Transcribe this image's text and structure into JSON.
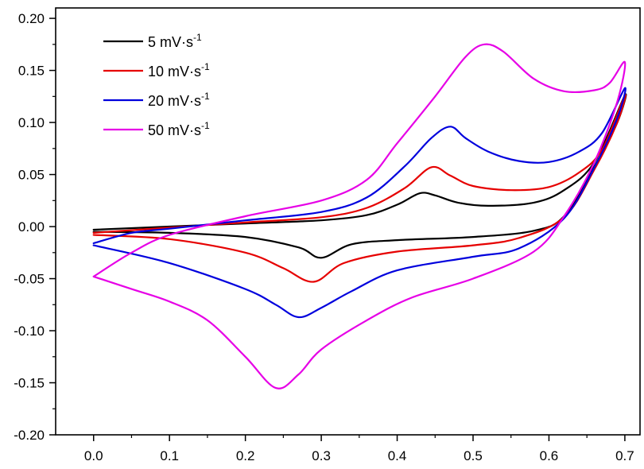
{
  "chart_data": {
    "type": "line",
    "title": "",
    "xlabel": "",
    "ylabel": "",
    "xlim": [
      -0.05,
      0.72
    ],
    "ylim": [
      -0.2,
      0.21
    ],
    "grid": false,
    "legend_position": "top-left",
    "x_ticks": [
      "0.0",
      "0.1",
      "0.2",
      "0.3",
      "0.4",
      "0.5",
      "0.6",
      "0.7"
    ],
    "x_tick_values": [
      0.0,
      0.1,
      0.2,
      0.3,
      0.4,
      0.5,
      0.6,
      0.7
    ],
    "y_ticks": [
      "0.20",
      "0.15",
      "0.10",
      "0.05",
      "0.00",
      "-0.05",
      "-0.10",
      "-0.15",
      "-0.20"
    ],
    "y_tick_values": [
      0.2,
      0.15,
      0.1,
      0.05,
      0.0,
      -0.05,
      -0.1,
      -0.15,
      -0.2
    ],
    "series": [
      {
        "name": "5 mV·s",
        "superscript": "-1",
        "color": "#000000",
        "points": [
          [
            0.0,
            -0.003
          ],
          [
            0.1,
            0.0
          ],
          [
            0.2,
            0.003
          ],
          [
            0.3,
            0.006
          ],
          [
            0.36,
            0.011
          ],
          [
            0.4,
            0.021
          ],
          [
            0.43,
            0.032
          ],
          [
            0.45,
            0.03
          ],
          [
            0.48,
            0.023
          ],
          [
            0.52,
            0.02
          ],
          [
            0.58,
            0.023
          ],
          [
            0.62,
            0.035
          ],
          [
            0.66,
            0.062
          ],
          [
            0.7,
            0.126
          ],
          [
            0.69,
            0.1
          ],
          [
            0.66,
            0.058
          ],
          [
            0.62,
            0.01
          ],
          [
            0.58,
            -0.004
          ],
          [
            0.5,
            -0.01
          ],
          [
            0.4,
            -0.013
          ],
          [
            0.34,
            -0.017
          ],
          [
            0.3,
            -0.03
          ],
          [
            0.27,
            -0.02
          ],
          [
            0.2,
            -0.01
          ],
          [
            0.1,
            -0.006
          ],
          [
            0.0,
            -0.005
          ]
        ]
      },
      {
        "name": "10 mV·s",
        "superscript": "-1",
        "color": "#e60000",
        "points": [
          [
            0.0,
            -0.006
          ],
          [
            0.1,
            -0.001
          ],
          [
            0.2,
            0.004
          ],
          [
            0.3,
            0.009
          ],
          [
            0.36,
            0.018
          ],
          [
            0.41,
            0.037
          ],
          [
            0.445,
            0.057
          ],
          [
            0.47,
            0.049
          ],
          [
            0.5,
            0.039
          ],
          [
            0.55,
            0.035
          ],
          [
            0.6,
            0.038
          ],
          [
            0.64,
            0.052
          ],
          [
            0.67,
            0.074
          ],
          [
            0.7,
            0.126
          ],
          [
            0.69,
            0.1
          ],
          [
            0.66,
            0.055
          ],
          [
            0.62,
            0.009
          ],
          [
            0.56,
            -0.011
          ],
          [
            0.5,
            -0.018
          ],
          [
            0.4,
            -0.024
          ],
          [
            0.33,
            -0.035
          ],
          [
            0.29,
            -0.053
          ],
          [
            0.25,
            -0.04
          ],
          [
            0.2,
            -0.025
          ],
          [
            0.1,
            -0.012
          ],
          [
            0.0,
            -0.008
          ]
        ]
      },
      {
        "name": "20 mV·s",
        "superscript": "-1",
        "color": "#0000dd",
        "points": [
          [
            0.0,
            -0.016
          ],
          [
            0.05,
            -0.006
          ],
          [
            0.1,
            -0.002
          ],
          [
            0.2,
            0.006
          ],
          [
            0.3,
            0.014
          ],
          [
            0.36,
            0.028
          ],
          [
            0.41,
            0.058
          ],
          [
            0.445,
            0.085
          ],
          [
            0.47,
            0.096
          ],
          [
            0.49,
            0.085
          ],
          [
            0.52,
            0.072
          ],
          [
            0.56,
            0.063
          ],
          [
            0.6,
            0.062
          ],
          [
            0.64,
            0.072
          ],
          [
            0.67,
            0.09
          ],
          [
            0.7,
            0.133
          ],
          [
            0.69,
            0.104
          ],
          [
            0.66,
            0.057
          ],
          [
            0.62,
            0.008
          ],
          [
            0.56,
            -0.021
          ],
          [
            0.5,
            -0.029
          ],
          [
            0.4,
            -0.042
          ],
          [
            0.34,
            -0.062
          ],
          [
            0.3,
            -0.078
          ],
          [
            0.27,
            -0.087
          ],
          [
            0.24,
            -0.075
          ],
          [
            0.2,
            -0.06
          ],
          [
            0.1,
            -0.035
          ],
          [
            0.0,
            -0.018
          ]
        ]
      },
      {
        "name": "50 mV·s",
        "superscript": "-1",
        "color": "#e600e6",
        "points": [
          [
            0.0,
            -0.048
          ],
          [
            0.05,
            -0.025
          ],
          [
            0.1,
            -0.008
          ],
          [
            0.2,
            0.01
          ],
          [
            0.3,
            0.025
          ],
          [
            0.36,
            0.045
          ],
          [
            0.4,
            0.08
          ],
          [
            0.45,
            0.125
          ],
          [
            0.49,
            0.163
          ],
          [
            0.515,
            0.175
          ],
          [
            0.54,
            0.168
          ],
          [
            0.58,
            0.142
          ],
          [
            0.62,
            0.13
          ],
          [
            0.66,
            0.131
          ],
          [
            0.68,
            0.138
          ],
          [
            0.7,
            0.158
          ],
          [
            0.69,
            0.12
          ],
          [
            0.66,
            0.062
          ],
          [
            0.62,
            0.01
          ],
          [
            0.58,
            -0.024
          ],
          [
            0.5,
            -0.05
          ],
          [
            0.42,
            -0.068
          ],
          [
            0.36,
            -0.09
          ],
          [
            0.3,
            -0.118
          ],
          [
            0.27,
            -0.142
          ],
          [
            0.24,
            -0.155
          ],
          [
            0.2,
            -0.125
          ],
          [
            0.15,
            -0.09
          ],
          [
            0.1,
            -0.072
          ],
          [
            0.05,
            -0.06
          ],
          [
            0.0,
            -0.048
          ]
        ]
      }
    ]
  }
}
